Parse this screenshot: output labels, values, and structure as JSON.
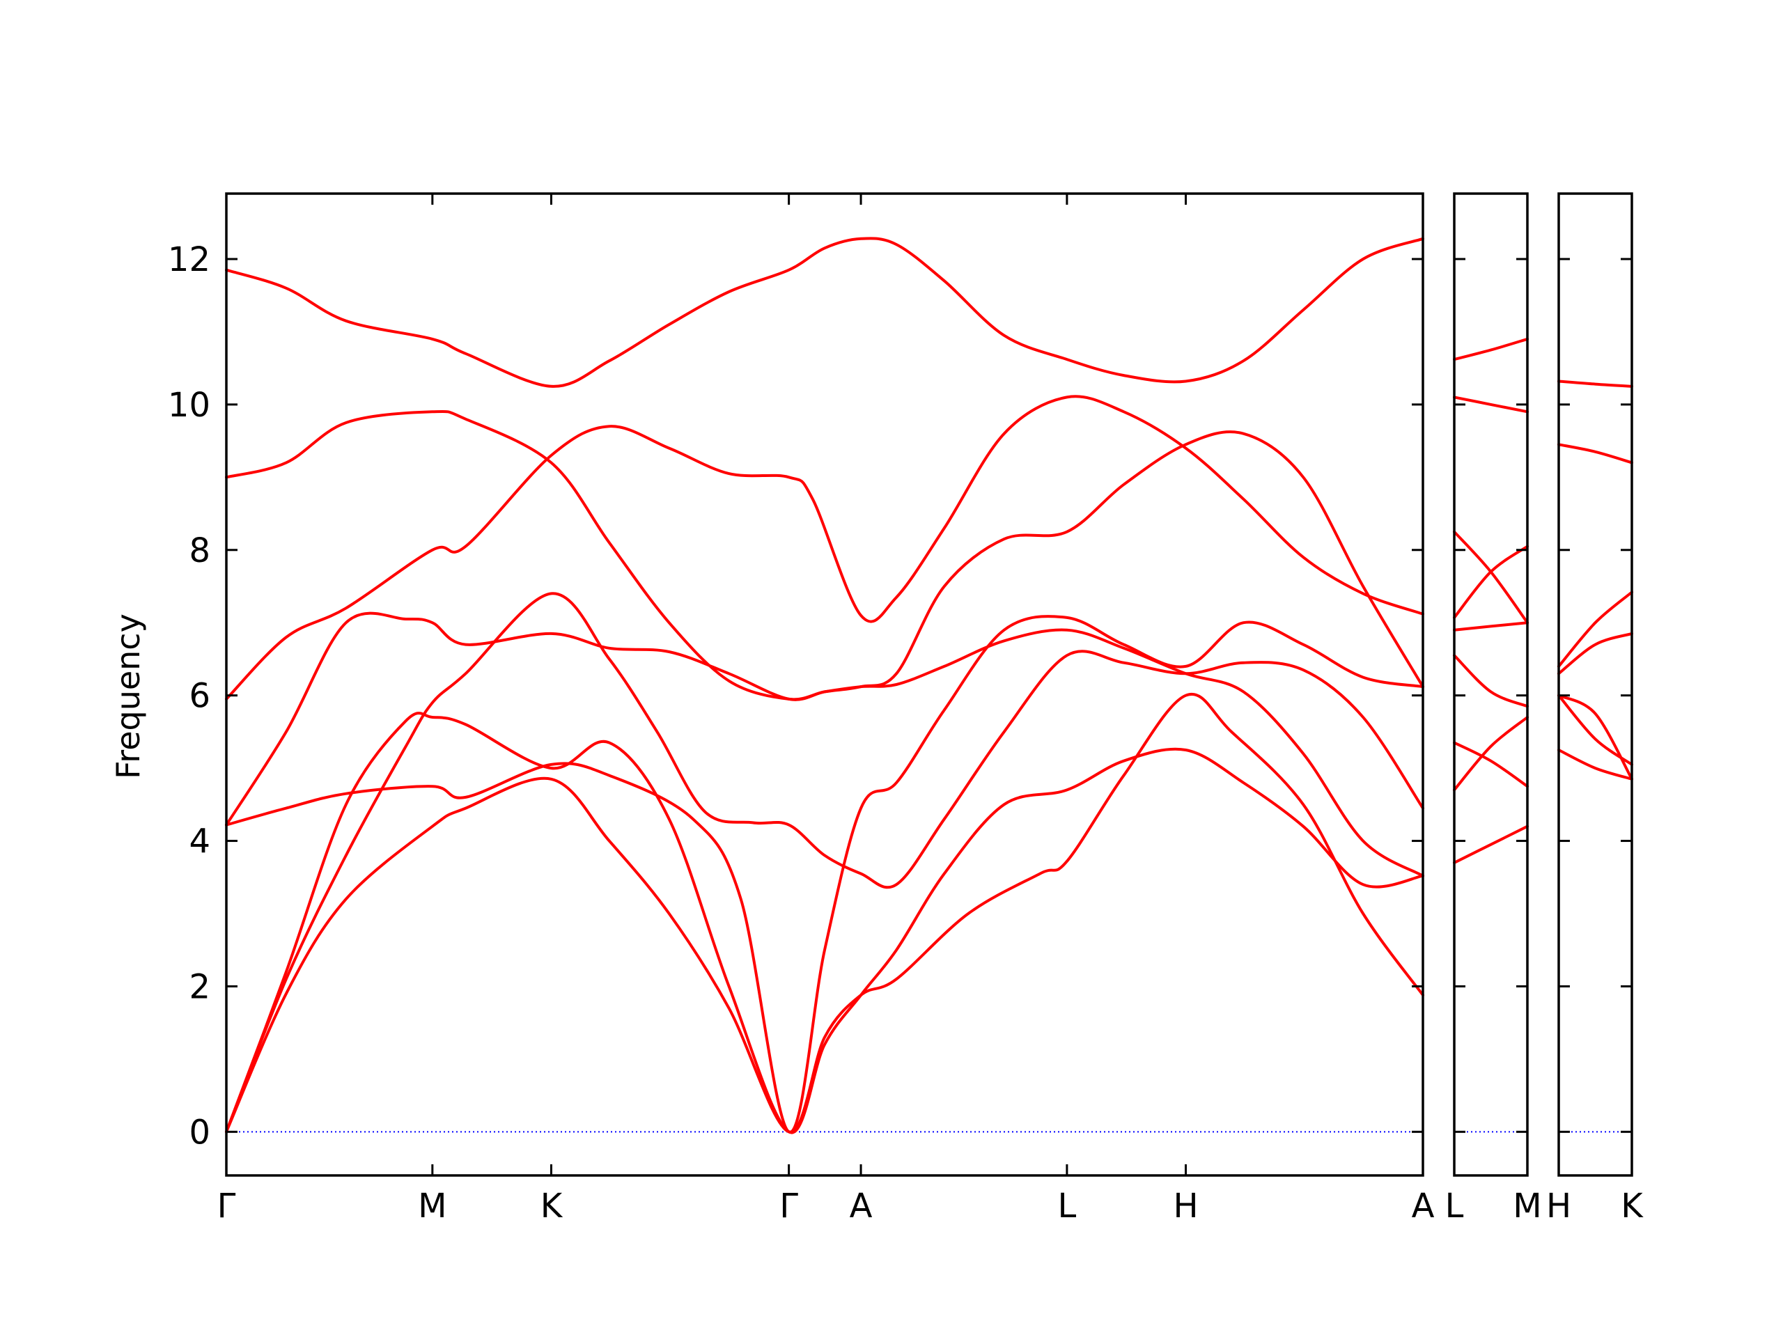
{
  "chart_data": {
    "type": "line",
    "ylabel": "Frequency",
    "ylim": [
      -0.6,
      12.9
    ],
    "yticks": [
      0,
      2,
      4,
      6,
      8,
      10,
      12
    ],
    "zero_line_color": "#0000ff",
    "band_color": "#ff0000",
    "panels": [
      {
        "id": "main",
        "kpoints": [
          "Γ",
          "M",
          "K",
          "Γ",
          "A",
          "L",
          "H",
          "A"
        ],
        "kpos": [
          0,
          0.1722,
          0.2715,
          0.4701,
          0.5303,
          0.7025,
          0.8018,
          1.0
        ],
        "bands": [
          [
            [
              0,
              0
            ],
            [
              0.05,
              1.9
            ],
            [
              0.1,
              3.2
            ],
            [
              0.1722,
              4.2
            ],
            [
              0.2,
              4.45
            ],
            [
              0.2715,
              4.85
            ],
            [
              0.32,
              4.0
            ],
            [
              0.37,
              3.0
            ],
            [
              0.42,
              1.7
            ],
            [
              0.4701,
              0
            ],
            [
              0.5,
              1.3
            ],
            [
              0.5303,
              1.88
            ],
            [
              0.56,
              2.1
            ],
            [
              0.62,
              3.0
            ],
            [
              0.68,
              3.55
            ],
            [
              0.7025,
              3.72
            ],
            [
              0.75,
              4.9
            ],
            [
              0.8018,
              6.0
            ],
            [
              0.84,
              5.5
            ],
            [
              0.9,
              4.5
            ],
            [
              0.95,
              3.0
            ],
            [
              1.0,
              1.88
            ]
          ],
          [
            [
              0,
              0
            ],
            [
              0.05,
              2.1
            ],
            [
              0.1,
              3.8
            ],
            [
              0.15,
              5.3
            ],
            [
              0.1722,
              5.9
            ],
            [
              0.2,
              6.3
            ],
            [
              0.2715,
              7.4
            ],
            [
              0.32,
              6.5
            ],
            [
              0.36,
              5.5
            ],
            [
              0.4,
              4.4
            ],
            [
              0.44,
              4.25
            ],
            [
              0.4701,
              4.22
            ],
            [
              0.5,
              3.8
            ],
            [
              0.5303,
              3.55
            ],
            [
              0.56,
              3.4
            ],
            [
              0.6,
              4.3
            ],
            [
              0.65,
              5.5
            ],
            [
              0.7025,
              6.55
            ],
            [
              0.75,
              6.45
            ],
            [
              0.8018,
              6.3
            ],
            [
              0.85,
              6.45
            ],
            [
              0.9,
              6.35
            ],
            [
              0.95,
              5.7
            ],
            [
              1.0,
              4.45
            ]
          ],
          [
            [
              0,
              4.22
            ],
            [
              0.05,
              5.5
            ],
            [
              0.1,
              7.0
            ],
            [
              0.15,
              7.05
            ],
            [
              0.1722,
              7.0
            ],
            [
              0.2,
              6.7
            ],
            [
              0.2715,
              6.85
            ],
            [
              0.32,
              6.65
            ],
            [
              0.37,
              6.6
            ],
            [
              0.42,
              6.3
            ],
            [
              0.4701,
              5.95
            ],
            [
              0.5,
              6.05
            ],
            [
              0.5303,
              6.12
            ],
            [
              0.56,
              6.15
            ],
            [
              0.6,
              6.4
            ],
            [
              0.65,
              6.75
            ],
            [
              0.7025,
              6.9
            ],
            [
              0.75,
              6.65
            ],
            [
              0.8018,
              6.3
            ],
            [
              0.85,
              6.05
            ],
            [
              0.9,
              5.2
            ],
            [
              0.95,
              4.0
            ],
            [
              1.0,
              3.52
            ]
          ],
          [
            [
              0,
              4.22
            ],
            [
              0.05,
              4.45
            ],
            [
              0.1,
              4.65
            ],
            [
              0.1722,
              4.75
            ],
            [
              0.2,
              4.6
            ],
            [
              0.2715,
              5.05
            ],
            [
              0.32,
              4.9
            ],
            [
              0.39,
              4.3
            ],
            [
              0.43,
              3.2
            ],
            [
              0.4701,
              0
            ],
            [
              0.5,
              2.5
            ],
            [
              0.5303,
              4.45
            ],
            [
              0.56,
              4.8
            ],
            [
              0.6,
              5.8
            ],
            [
              0.65,
              6.9
            ],
            [
              0.7025,
              7.07
            ],
            [
              0.75,
              6.7
            ],
            [
              0.8018,
              6.4
            ],
            [
              0.85,
              7.0
            ],
            [
              0.9,
              6.7
            ],
            [
              0.95,
              6.25
            ],
            [
              1.0,
              6.12
            ]
          ],
          [
            [
              0,
              0
            ],
            [
              0.05,
              2.2
            ],
            [
              0.1,
              4.5
            ],
            [
              0.15,
              5.65
            ],
            [
              0.1722,
              5.7
            ],
            [
              0.2,
              5.6
            ],
            [
              0.2715,
              5.0
            ],
            [
              0.32,
              5.35
            ],
            [
              0.37,
              4.3
            ],
            [
              0.42,
              2.0
            ],
            [
              0.4701,
              0
            ],
            [
              0.5,
              1.2
            ],
            [
              0.5303,
              1.88
            ],
            [
              0.56,
              2.5
            ],
            [
              0.6,
              3.55
            ],
            [
              0.65,
              4.5
            ],
            [
              0.7025,
              4.7
            ],
            [
              0.75,
              5.1
            ],
            [
              0.8018,
              5.25
            ],
            [
              0.85,
              4.8
            ],
            [
              0.9,
              4.2
            ],
            [
              0.95,
              3.4
            ],
            [
              1.0,
              3.52
            ]
          ],
          [
            [
              0,
              5.95
            ],
            [
              0.05,
              6.8
            ],
            [
              0.1,
              7.2
            ],
            [
              0.1722,
              8.0
            ],
            [
              0.2,
              8.05
            ],
            [
              0.2715,
              9.3
            ],
            [
              0.32,
              9.7
            ],
            [
              0.37,
              9.4
            ],
            [
              0.42,
              9.05
            ],
            [
              0.4701,
              9.0
            ],
            [
              0.49,
              8.7
            ],
            [
              0.5303,
              7.1
            ],
            [
              0.56,
              7.35
            ],
            [
              0.6,
              8.3
            ],
            [
              0.65,
              9.6
            ],
            [
              0.7025,
              10.1
            ],
            [
              0.75,
              9.9
            ],
            [
              0.8018,
              9.4
            ],
            [
              0.85,
              8.7
            ],
            [
              0.9,
              7.9
            ],
            [
              0.95,
              7.4
            ],
            [
              1.0,
              7.12
            ]
          ],
          [
            [
              0,
              9.0
            ],
            [
              0.05,
              9.2
            ],
            [
              0.1,
              9.75
            ],
            [
              0.1722,
              9.9
            ],
            [
              0.2,
              9.8
            ],
            [
              0.2715,
              9.2
            ],
            [
              0.32,
              8.1
            ],
            [
              0.37,
              7.0
            ],
            [
              0.42,
              6.2
            ],
            [
              0.4701,
              5.95
            ],
            [
              0.5,
              6.05
            ],
            [
              0.5303,
              6.12
            ],
            [
              0.56,
              6.3
            ],
            [
              0.6,
              7.5
            ],
            [
              0.65,
              8.15
            ],
            [
              0.7025,
              8.25
            ],
            [
              0.75,
              8.9
            ],
            [
              0.8018,
              9.45
            ],
            [
              0.85,
              9.6
            ],
            [
              0.9,
              9.0
            ],
            [
              0.95,
              7.5
            ],
            [
              1.0,
              6.12
            ]
          ],
          [
            [
              0,
              11.85
            ],
            [
              0.05,
              11.6
            ],
            [
              0.1,
              11.15
            ],
            [
              0.1722,
              10.9
            ],
            [
              0.2,
              10.7
            ],
            [
              0.2715,
              10.25
            ],
            [
              0.32,
              10.6
            ],
            [
              0.37,
              11.1
            ],
            [
              0.42,
              11.55
            ],
            [
              0.4701,
              11.85
            ],
            [
              0.5,
              12.15
            ],
            [
              0.5303,
              12.28
            ],
            [
              0.56,
              12.2
            ],
            [
              0.6,
              11.7
            ],
            [
              0.65,
              10.95
            ],
            [
              0.7025,
              10.62
            ],
            [
              0.75,
              10.4
            ],
            [
              0.8018,
              10.32
            ],
            [
              0.85,
              10.6
            ],
            [
              0.9,
              11.3
            ],
            [
              0.95,
              12.0
            ],
            [
              1.0,
              12.28
            ]
          ]
        ]
      },
      {
        "id": "LM",
        "kpoints": [
          "L",
          "M"
        ],
        "kpos": [
          0,
          1
        ],
        "bands": [
          [
            [
              0,
              3.7
            ],
            [
              0.5,
              3.95
            ],
            [
              1,
              4.2
            ]
          ],
          [
            [
              0,
              4.7
            ],
            [
              0.5,
              5.3
            ],
            [
              1,
              5.7
            ]
          ],
          [
            [
              0,
              5.35
            ],
            [
              0.5,
              5.1
            ],
            [
              1,
              4.75
            ]
          ],
          [
            [
              0,
              6.55
            ],
            [
              0.5,
              6.05
            ],
            [
              1,
              5.85
            ]
          ],
          [
            [
              0,
              6.9
            ],
            [
              0.5,
              6.95
            ],
            [
              1,
              7.0
            ]
          ],
          [
            [
              0,
              7.07
            ],
            [
              0.5,
              7.7
            ],
            [
              1,
              8.05
            ]
          ],
          [
            [
              0,
              8.25
            ],
            [
              0.5,
              7.7
            ],
            [
              1,
              7.0
            ]
          ],
          [
            [
              0,
              10.1
            ],
            [
              0.5,
              10.0
            ],
            [
              1,
              9.9
            ]
          ],
          [
            [
              0,
              10.62
            ],
            [
              0.5,
              10.75
            ],
            [
              1,
              10.9
            ]
          ]
        ]
      },
      {
        "id": "HK",
        "kpoints": [
          "H",
          "K"
        ],
        "kpos": [
          0,
          1
        ],
        "bands": [
          [
            [
              0,
              5.25
            ],
            [
              0.5,
              5.0
            ],
            [
              1,
              4.85
            ]
          ],
          [
            [
              0,
              6.0
            ],
            [
              0.5,
              5.4
            ],
            [
              1,
              5.05
            ]
          ],
          [
            [
              0,
              6.0
            ],
            [
              0.5,
              5.75
            ],
            [
              1,
              4.85
            ]
          ],
          [
            [
              0,
              6.3
            ],
            [
              0.5,
              6.7
            ],
            [
              1,
              6.85
            ]
          ],
          [
            [
              0,
              6.4
            ],
            [
              0.5,
              7.0
            ],
            [
              1,
              7.42
            ]
          ],
          [
            [
              0,
              9.45
            ],
            [
              0.5,
              9.35
            ],
            [
              1,
              9.2
            ]
          ],
          [
            [
              0,
              10.32
            ],
            [
              0.5,
              10.28
            ],
            [
              1,
              10.25
            ]
          ]
        ]
      }
    ]
  }
}
